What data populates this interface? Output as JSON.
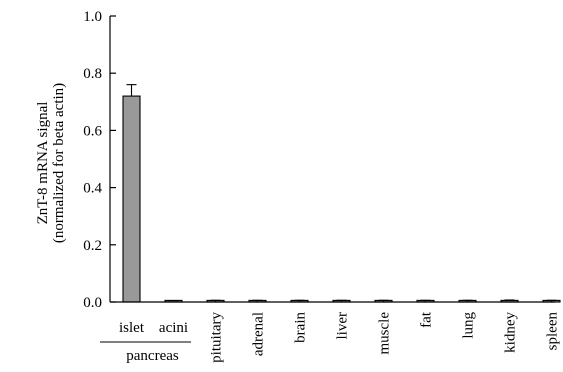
{
  "chart_data": {
    "type": "bar",
    "categories": [
      "islet",
      "acini",
      "pituitary",
      "adrenal",
      "brain",
      "liver",
      "muscle",
      "fat",
      "lung",
      "kidney",
      "spleen"
    ],
    "series": [
      {
        "values": [
          0.72,
          0.004,
          0.002,
          0.002,
          0.002,
          0.002,
          0.002,
          0.002,
          0.002,
          0.005,
          0.002
        ],
        "error": [
          0.04,
          0.001,
          0.004,
          0.004,
          0.004,
          0.004,
          0.004,
          0.004,
          0.004,
          0.002,
          0.004
        ]
      }
    ],
    "ylim": [
      0,
      1.0
    ],
    "yticks": [
      0.0,
      0.2,
      0.4,
      0.6,
      0.8,
      1.0
    ],
    "ytick_labels": [
      "0.0",
      "0.2",
      "0.4",
      "0.6",
      "0.8",
      "1.0"
    ],
    "ylabel": [
      "ZnT-8 mRNA signal",
      "(normalized for beta actin)"
    ],
    "group_label": {
      "text": "pancreas",
      "members": [
        "islet",
        "acini"
      ]
    },
    "grid": false,
    "bar_color": "#999999"
  }
}
